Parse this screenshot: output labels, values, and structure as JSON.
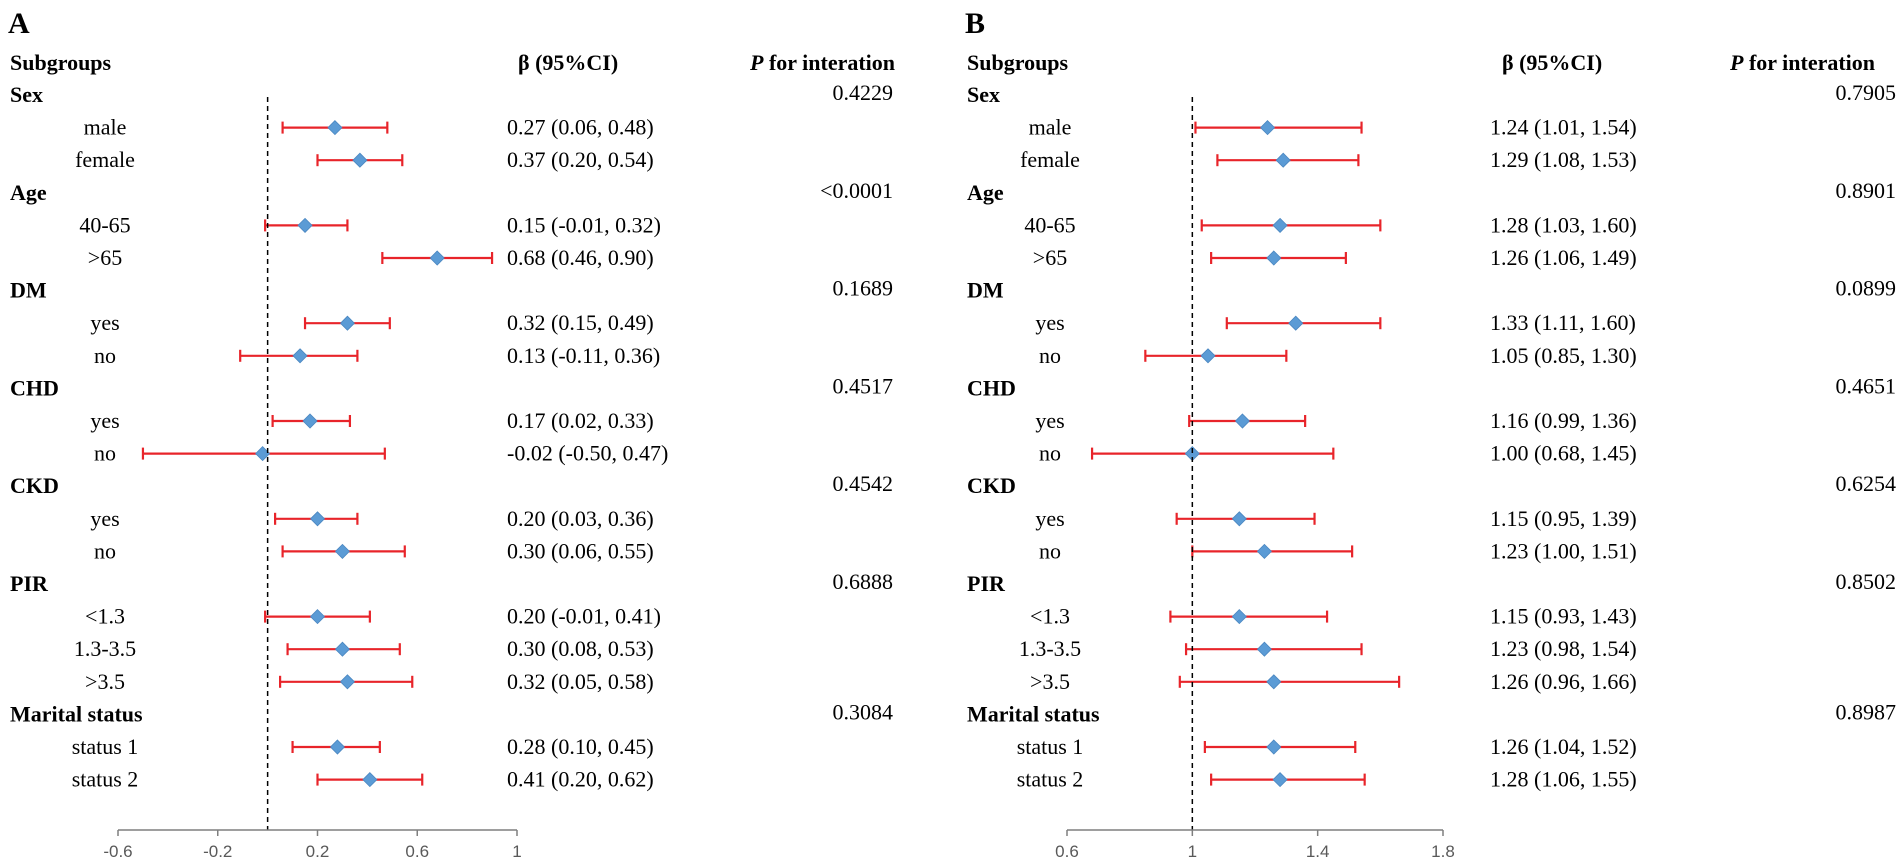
{
  "chart_data": [
    {
      "type": "forest",
      "panel": "A",
      "headers": {
        "subgroups": "Subgroups",
        "estimate": "β (95%CI)",
        "p_italic": "P",
        "p_rest": " for interation"
      },
      "xticks": [
        -0.6,
        -0.2,
        0.2,
        0.6,
        1
      ],
      "xtick_labels": [
        "-0.6",
        "-0.2",
        "0.2",
        "0.6",
        "1"
      ],
      "xlim": [
        -0.6,
        1
      ],
      "reference": 0,
      "groups": [
        {
          "name": "Sex",
          "p": "0.4229",
          "rows": [
            {
              "label": "male",
              "est": 0.27,
              "lo": 0.06,
              "hi": 0.48,
              "text": "0.27 (0.06, 0.48)"
            },
            {
              "label": "female",
              "est": 0.37,
              "lo": 0.2,
              "hi": 0.54,
              "text": "0.37 (0.20, 0.54)"
            }
          ]
        },
        {
          "name": "Age",
          "p": "<0.0001",
          "rows": [
            {
              "label": "40-65",
              "est": 0.15,
              "lo": -0.01,
              "hi": 0.32,
              "text": "0.15 (-0.01, 0.32)"
            },
            {
              "label": ">65",
              "est": 0.68,
              "lo": 0.46,
              "hi": 0.9,
              "text": "0.68 (0.46, 0.90)"
            }
          ]
        },
        {
          "name": "DM",
          "p": "0.1689",
          "rows": [
            {
              "label": "yes",
              "est": 0.32,
              "lo": 0.15,
              "hi": 0.49,
              "text": "0.32 (0.15, 0.49)"
            },
            {
              "label": "no",
              "est": 0.13,
              "lo": -0.11,
              "hi": 0.36,
              "text": "0.13 (-0.11, 0.36)"
            }
          ]
        },
        {
          "name": "CHD",
          "p": "0.4517",
          "rows": [
            {
              "label": "yes",
              "est": 0.17,
              "lo": 0.02,
              "hi": 0.33,
              "text": "0.17 (0.02, 0.33)"
            },
            {
              "label": "no",
              "est": -0.02,
              "lo": -0.5,
              "hi": 0.47,
              "text": "-0.02 (-0.50, 0.47)"
            }
          ]
        },
        {
          "name": "CKD",
          "p": "0.4542",
          "rows": [
            {
              "label": "yes",
              "est": 0.2,
              "lo": 0.03,
              "hi": 0.36,
              "text": "0.20 (0.03, 0.36)"
            },
            {
              "label": "no",
              "est": 0.3,
              "lo": 0.06,
              "hi": 0.55,
              "text": "0.30 (0.06, 0.55)"
            }
          ]
        },
        {
          "name": "PIR",
          "p": "0.6888",
          "rows": [
            {
              "label": "<1.3",
              "est": 0.2,
              "lo": -0.01,
              "hi": 0.41,
              "text": "0.20 (-0.01, 0.41)"
            },
            {
              "label": "1.3-3.5",
              "est": 0.3,
              "lo": 0.08,
              "hi": 0.53,
              "text": "0.30 (0.08, 0.53)"
            },
            {
              "label": ">3.5",
              "est": 0.32,
              "lo": 0.05,
              "hi": 0.58,
              "text": "0.32 (0.05, 0.58)"
            }
          ]
        },
        {
          "name": "Marital status",
          "p": "0.3084",
          "rows": [
            {
              "label": "status 1",
              "est": 0.28,
              "lo": 0.1,
              "hi": 0.45,
              "text": "0.28 (0.10, 0.45)"
            },
            {
              "label": "status 2",
              "est": 0.41,
              "lo": 0.2,
              "hi": 0.62,
              "text": "0.41 (0.20, 0.62)"
            }
          ]
        }
      ]
    },
    {
      "type": "forest",
      "panel": "B",
      "headers": {
        "subgroups": "Subgroups",
        "estimate": "β (95%CI)",
        "p_italic": "P",
        "p_rest": " for interation"
      },
      "xticks": [
        0.6,
        1,
        1.4,
        1.8
      ],
      "xtick_labels": [
        "0.6",
        "1",
        "1.4",
        "1.8"
      ],
      "xlim": [
        0.6,
        1.8
      ],
      "reference": 1,
      "groups": [
        {
          "name": "Sex",
          "p": "0.7905",
          "rows": [
            {
              "label": "male",
              "est": 1.24,
              "lo": 1.01,
              "hi": 1.54,
              "text": "1.24 (1.01, 1.54)"
            },
            {
              "label": "female",
              "est": 1.29,
              "lo": 1.08,
              "hi": 1.53,
              "text": "1.29 (1.08, 1.53)"
            }
          ]
        },
        {
          "name": "Age",
          "p": "0.8901",
          "rows": [
            {
              "label": "40-65",
              "est": 1.28,
              "lo": 1.03,
              "hi": 1.6,
              "text": "1.28 (1.03, 1.60)"
            },
            {
              "label": ">65",
              "est": 1.26,
              "lo": 1.06,
              "hi": 1.49,
              "text": "1.26 (1.06, 1.49)"
            }
          ]
        },
        {
          "name": "DM",
          "p": "0.0899",
          "rows": [
            {
              "label": "yes",
              "est": 1.33,
              "lo": 1.11,
              "hi": 1.6,
              "text": "1.33 (1.11, 1.60)"
            },
            {
              "label": "no",
              "est": 1.05,
              "lo": 0.85,
              "hi": 1.3,
              "text": "1.05 (0.85, 1.30)"
            }
          ]
        },
        {
          "name": "CHD",
          "p": "0.4651",
          "rows": [
            {
              "label": "yes",
              "est": 1.16,
              "lo": 0.99,
              "hi": 1.36,
              "text": "1.16 (0.99, 1.36)"
            },
            {
              "label": "no",
              "est": 1.0,
              "lo": 0.68,
              "hi": 1.45,
              "text": "1.00 (0.68, 1.45)"
            }
          ]
        },
        {
          "name": "CKD",
          "p": "0.6254",
          "rows": [
            {
              "label": "yes",
              "est": 1.15,
              "lo": 0.95,
              "hi": 1.39,
              "text": "1.15 (0.95, 1.39)"
            },
            {
              "label": "no",
              "est": 1.23,
              "lo": 1.0,
              "hi": 1.51,
              "text": "1.23 (1.00, 1.51)"
            }
          ]
        },
        {
          "name": "PIR",
          "p": "0.8502",
          "rows": [
            {
              "label": "<1.3",
              "est": 1.15,
              "lo": 0.93,
              "hi": 1.43,
              "text": "1.15 (0.93, 1.43)"
            },
            {
              "label": "1.3-3.5",
              "est": 1.23,
              "lo": 0.98,
              "hi": 1.54,
              "text": "1.23 (0.98, 1.54)"
            },
            {
              "label": ">3.5",
              "est": 1.26,
              "lo": 0.96,
              "hi": 1.66,
              "text": "1.26 (0.96, 1.66)"
            }
          ]
        },
        {
          "name": "Marital status",
          "p": "0.8987",
          "rows": [
            {
              "label": "status 1",
              "est": 1.26,
              "lo": 1.04,
              "hi": 1.52,
              "text": "1.26 (1.04, 1.52)"
            },
            {
              "label": "status 2",
              "est": 1.28,
              "lo": 1.06,
              "hi": 1.55,
              "text": "1.28 (1.06, 1.55)"
            }
          ]
        }
      ]
    }
  ],
  "colors": {
    "ci": "#e8242a",
    "marker": "#5b9bd5",
    "axis": "#7f7f7f",
    "reference": "#000000",
    "text": "#000000"
  }
}
